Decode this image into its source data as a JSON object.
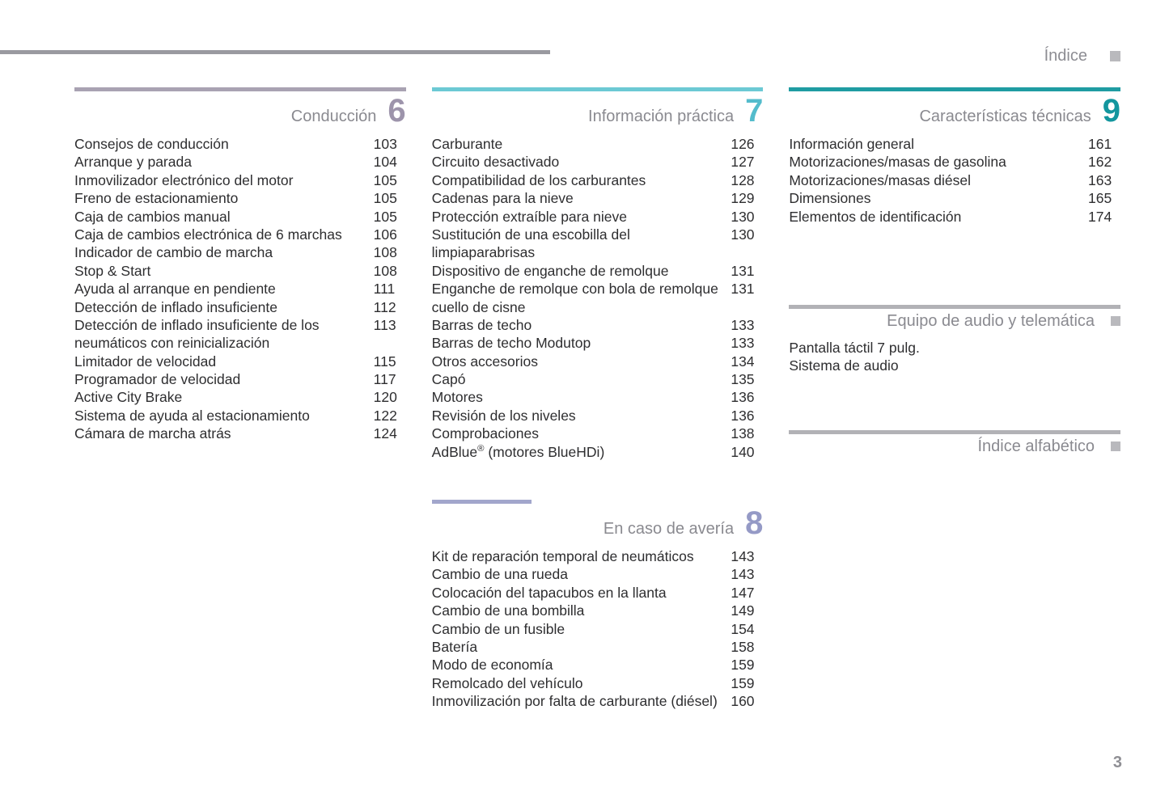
{
  "header": {
    "label": "Índice"
  },
  "page_number": "3",
  "colors": {
    "c6_rule": "#a9a2b2",
    "c6_num": "#9d94ab",
    "c7_rule": "#6cc9d4",
    "c7_num": "#54bccc",
    "c8_rule": "#a2a6cc",
    "c8_num": "#959ac6",
    "c9_rule": "#1f9ca2",
    "c9_num": "#13969e",
    "audio_rule": "#b2b2b6",
    "alpha_rule": "#b2b2b6"
  },
  "sections": {
    "s6": {
      "title": "Conducción",
      "number": "6",
      "entries": [
        {
          "t": "Consejos de conducción",
          "p": "103"
        },
        {
          "t": "Arranque y parada",
          "p": "104"
        },
        {
          "t": "Inmovilizador electrónico del motor",
          "p": "105"
        },
        {
          "t": "Freno de estacionamiento",
          "p": "105"
        },
        {
          "t": "Caja de cambios manual",
          "p": "105"
        },
        {
          "t": "Caja de cambios electrónica de 6 marchas",
          "p": "106"
        },
        {
          "t": "Indicador de cambio de marcha",
          "p": "108"
        },
        {
          "t": "Stop & Start",
          "p": "108"
        },
        {
          "t": "Ayuda al arranque en pendiente",
          "p": "111"
        },
        {
          "t": "Detección de inflado insuficiente",
          "p": "112"
        },
        {
          "t": "Detección de inflado insuficiente de los neumáticos con reinicialización",
          "p": "113"
        },
        {
          "t": "Limitador de velocidad",
          "p": "115"
        },
        {
          "t": "Programador de velocidad",
          "p": "117"
        },
        {
          "t": "Active City Brake",
          "p": "120"
        },
        {
          "t": "Sistema de ayuda al estacionamiento",
          "p": "122"
        },
        {
          "t": "Cámara de marcha atrás",
          "p": "124"
        }
      ]
    },
    "s7": {
      "title": "Información práctica",
      "number": "7",
      "entries": [
        {
          "t": "Carburante",
          "p": "126"
        },
        {
          "t": "Circuito desactivado",
          "p": "127"
        },
        {
          "t": "Compatibilidad de los carburantes",
          "p": "128"
        },
        {
          "t": "Cadenas para la nieve",
          "p": "129"
        },
        {
          "t": "Protección extraíble para nieve",
          "p": "130"
        },
        {
          "t": "Sustitución de una escobilla del limpiaparabrisas",
          "p": "130"
        },
        {
          "t": "Dispositivo de enganche de remolque",
          "p": "131"
        },
        {
          "t": "Enganche de remolque con bola de remolque cuello de cisne",
          "p": "131"
        },
        {
          "t": "Barras de techo",
          "p": "133"
        },
        {
          "t": "Barras de techo Modutop",
          "p": "133"
        },
        {
          "t": "Otros accesorios",
          "p": "134"
        },
        {
          "t": "Capó",
          "p": "135"
        },
        {
          "t": "Motores",
          "p": "136"
        },
        {
          "t": "Revisión de los niveles",
          "p": "136"
        },
        {
          "t": "Comprobaciones",
          "p": "138"
        },
        {
          "t": "AdBlue® (motores BlueHDi)",
          "p": "140"
        }
      ]
    },
    "s8": {
      "title": "En caso de avería",
      "number": "8",
      "entries": [
        {
          "t": "Kit de reparación temporal de neumáticos",
          "p": "143"
        },
        {
          "t": "Cambio de una rueda",
          "p": "143"
        },
        {
          "t": "Colocación del tapacubos en la llanta",
          "p": "147"
        },
        {
          "t": "Cambio de una bombilla",
          "p": "149"
        },
        {
          "t": "Cambio de un fusible",
          "p": "154"
        },
        {
          "t": "Batería",
          "p": "158"
        },
        {
          "t": "Modo de economía",
          "p": "159"
        },
        {
          "t": "Remolcado del vehículo",
          "p": "159"
        },
        {
          "t": "Inmovilización por falta de carburante (diésel)",
          "p": "160"
        }
      ]
    },
    "s9": {
      "title": "Características técnicas",
      "number": "9",
      "entries": [
        {
          "t": "Información general",
          "p": "161"
        },
        {
          "t": "Motorizaciones/masas de gasolina",
          "p": "162"
        },
        {
          "t": "Motorizaciones/masas diésel",
          "p": "163"
        },
        {
          "t": "Dimensiones",
          "p": "165"
        },
        {
          "t": "Elementos de identificación",
          "p": "174"
        }
      ]
    },
    "audio": {
      "title": "Equipo de audio y telemática",
      "entries": [
        {
          "t": "Pantalla táctil 7 pulg.",
          "p": ""
        },
        {
          "t": "Sistema de audio",
          "p": ""
        }
      ]
    },
    "alpha": {
      "title": "Índice alfabético"
    }
  }
}
